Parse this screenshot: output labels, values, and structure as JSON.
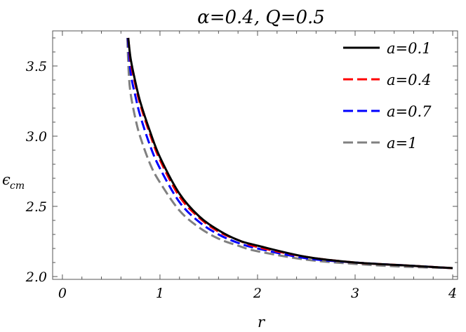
{
  "chart_data": {
    "type": "line",
    "title": "α=0.4, Q=0.5",
    "xlabel": "r",
    "ylabel_main": "ϵ",
    "ylabel_sub": "cm",
    "xlim": [
      -0.1,
      4.05
    ],
    "ylim": [
      1.98,
      3.75
    ],
    "xticks": [
      {
        "value": 0,
        "label": "0"
      },
      {
        "value": 1,
        "label": "1"
      },
      {
        "value": 2,
        "label": "2"
      },
      {
        "value": 3,
        "label": "3"
      },
      {
        "value": 4,
        "label": "4"
      }
    ],
    "yticks": [
      {
        "value": 2.0,
        "label": "2.0"
      },
      {
        "value": 2.5,
        "label": "2.5"
      },
      {
        "value": 3.0,
        "label": "3.0"
      },
      {
        "value": 3.5,
        "label": "3.5"
      }
    ],
    "grid": false,
    "legend_position": "top-right",
    "series": [
      {
        "name": "a=0.1",
        "color": "#000000",
        "dash": "solid",
        "x": [
          0.675,
          0.7,
          0.75,
          0.8,
          0.9,
          1.0,
          1.2,
          1.4,
          1.6,
          1.8,
          2.0,
          2.5,
          3.0,
          3.5,
          4.0
        ],
        "y": [
          3.7,
          3.55,
          3.38,
          3.24,
          3.03,
          2.85,
          2.59,
          2.43,
          2.33,
          2.26,
          2.22,
          2.14,
          2.1,
          2.08,
          2.06
        ]
      },
      {
        "name": "a=0.4",
        "color": "#ff0000",
        "dash": "dashed",
        "x": [
          0.675,
          0.7,
          0.75,
          0.8,
          0.9,
          1.0,
          1.2,
          1.4,
          1.6,
          1.8,
          2.0,
          2.5,
          3.0,
          3.5,
          4.0
        ],
        "y": [
          3.7,
          3.53,
          3.36,
          3.22,
          3.01,
          2.83,
          2.57,
          2.42,
          2.32,
          2.26,
          2.21,
          2.14,
          2.1,
          2.08,
          2.06
        ]
      },
      {
        "name": "a=0.7",
        "color": "#0000ff",
        "dash": "dashed",
        "x": [
          0.67,
          0.7,
          0.75,
          0.8,
          0.9,
          1.0,
          1.2,
          1.4,
          1.6,
          1.8,
          2.0,
          2.5,
          3.0,
          3.5,
          4.0
        ],
        "y": [
          3.7,
          3.45,
          3.28,
          3.14,
          2.93,
          2.77,
          2.53,
          2.39,
          2.3,
          2.24,
          2.2,
          2.13,
          2.1,
          2.08,
          2.06
        ]
      },
      {
        "name": "a=1",
        "color": "#808080",
        "dash": "dashed",
        "x": [
          0.665,
          0.68,
          0.7,
          0.75,
          0.8,
          0.9,
          1.0,
          1.2,
          1.4,
          1.6,
          1.8,
          2.0,
          2.5,
          3.0,
          3.5,
          4.0
        ],
        "y": [
          3.7,
          3.45,
          3.3,
          3.12,
          2.99,
          2.8,
          2.67,
          2.47,
          2.35,
          2.27,
          2.22,
          2.18,
          2.12,
          2.09,
          2.07,
          2.06
        ]
      }
    ]
  }
}
